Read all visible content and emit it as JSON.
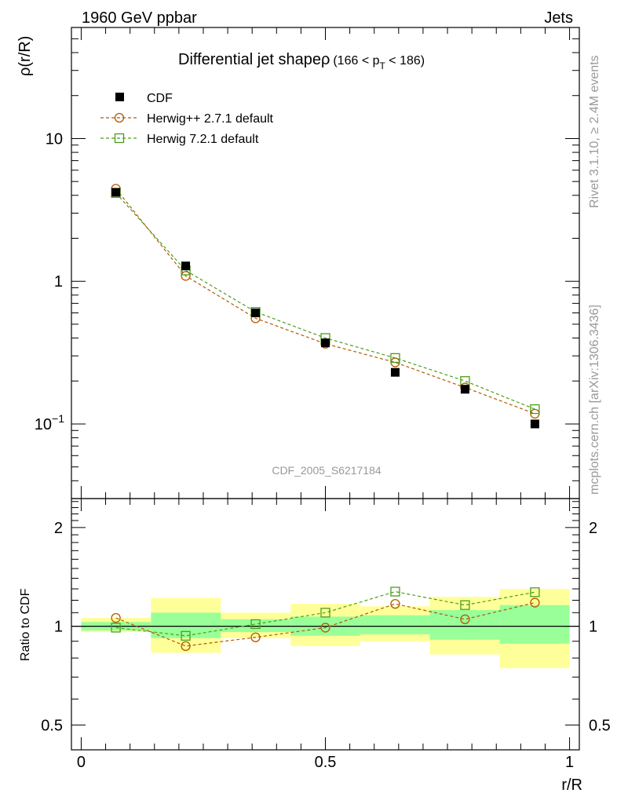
{
  "header": {
    "left": "1960 GeV ppbar",
    "right": "Jets"
  },
  "side_labels": {
    "rivet": "Rivet 3.1.10, ≥ 2.4M events",
    "mcplots": "mcplots.cern.ch [arXiv:1306.3436]"
  },
  "colors": {
    "cdf": "#000000",
    "herwigpp": "#b35900",
    "herwig7": "#4a9e1a",
    "band_inner": "#99ff99",
    "band_outer": "#ffff99"
  },
  "chart_data": [
    {
      "type": "line",
      "name": "main",
      "title": "Differential jet shapeρ",
      "title_sub": "(166 < p_T < 186)",
      "title_sub_parts": {
        "pre": "(166 < p",
        "sub": "T",
        "post": " < 186)"
      },
      "ylabel": "ρ(r/R)",
      "xlabel": "",
      "yscale": "log",
      "ylim": [
        0.03,
        60
      ],
      "xlim": [
        -0.02,
        1.02
      ],
      "yticks": [
        {
          "value": 10,
          "label": "10",
          "sup": ""
        },
        {
          "value": 1,
          "label": "1",
          "sup": ""
        },
        {
          "value": 0.1,
          "label": "10",
          "sup": "−1"
        }
      ],
      "watermark": "CDF_2005_S6217184",
      "legend": [
        {
          "name": "CDF",
          "marker": "filled-square"
        },
        {
          "name": "Herwig++ 2.7.1 default",
          "marker": "open-circle"
        },
        {
          "name": "Herwig 7.2.1 default",
          "marker": "open-square"
        }
      ],
      "x": [
        0.071,
        0.214,
        0.357,
        0.5,
        0.643,
        0.786,
        0.929
      ],
      "series": [
        {
          "name": "CDF",
          "values": [
            4.2,
            1.28,
            0.6,
            0.37,
            0.23,
            0.175,
            0.1
          ]
        },
        {
          "name": "Herwig++ 2.7.1 default",
          "values": [
            4.45,
            1.09,
            0.55,
            0.365,
            0.27,
            0.18,
            0.118
          ]
        },
        {
          "name": "Herwig 7.2.1 default",
          "values": [
            4.15,
            1.19,
            0.61,
            0.4,
            0.29,
            0.2,
            0.127
          ]
        }
      ]
    },
    {
      "type": "line",
      "name": "ratio",
      "ylabel": "Ratio to CDF",
      "xlabel": "r/R",
      "yscale": "log",
      "ylim": [
        0.42,
        2.45
      ],
      "xlim": [
        -0.02,
        1.02
      ],
      "yticks": [
        {
          "value": 2,
          "label": "2"
        },
        {
          "value": 1,
          "label": "1"
        },
        {
          "value": 0.5,
          "label": "0.5"
        }
      ],
      "xticks": [
        {
          "value": 0,
          "label": "0"
        },
        {
          "value": 0.5,
          "label": "0.5"
        },
        {
          "value": 1,
          "label": "1"
        }
      ],
      "bins": [
        0,
        0.143,
        0.286,
        0.429,
        0.571,
        0.714,
        0.857,
        1.0
      ],
      "band_inner": [
        [
          0.97,
          1.03
        ],
        [
          0.92,
          1.1
        ],
        [
          0.96,
          1.05
        ],
        [
          0.935,
          1.07
        ],
        [
          0.945,
          1.08
        ],
        [
          0.91,
          1.12
        ],
        [
          0.885,
          1.16
        ]
      ],
      "band_outer": [
        [
          0.96,
          1.06
        ],
        [
          0.83,
          1.22
        ],
        [
          0.92,
          1.1
        ],
        [
          0.87,
          1.17
        ],
        [
          0.9,
          1.15
        ],
        [
          0.82,
          1.23
        ],
        [
          0.745,
          1.3
        ]
      ],
      "x": [
        0.071,
        0.214,
        0.357,
        0.5,
        0.643,
        0.786,
        0.929
      ],
      "series": [
        {
          "name": "Herwig++ 2.7.1 default",
          "values": [
            1.06,
            0.87,
            0.925,
            0.99,
            1.17,
            1.05,
            1.18
          ]
        },
        {
          "name": "Herwig 7.2.1 default",
          "values": [
            0.99,
            0.935,
            1.015,
            1.1,
            1.275,
            1.16,
            1.27
          ]
        }
      ]
    }
  ]
}
